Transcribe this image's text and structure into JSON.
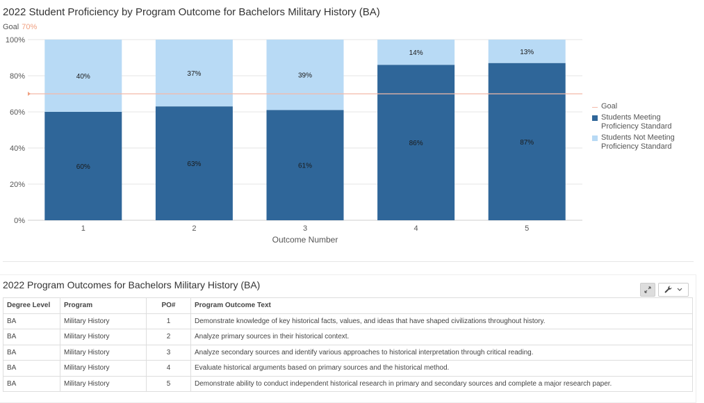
{
  "chart_data": {
    "type": "bar",
    "stacked": true,
    "title": "2022 Student Proficiency by Program Outcome for Bachelors Military History (BA)",
    "xlabel": "Outcome Number",
    "ylabel": "",
    "categories": [
      "1",
      "2",
      "3",
      "4",
      "5"
    ],
    "y_ticks": [
      "0%",
      "20%",
      "40%",
      "60%",
      "80%",
      "100%"
    ],
    "ylim": [
      0,
      100
    ],
    "goal": {
      "label": "Goal",
      "value": 70,
      "value_label": "70%"
    },
    "series": [
      {
        "name": "Students Meeting Proficiency Standard",
        "values": [
          60,
          63,
          61,
          86,
          87
        ],
        "labels": [
          "60%",
          "63%",
          "61%",
          "86%",
          "87%"
        ],
        "color": "#2f6699"
      },
      {
        "name": "Students Not Meeting Proficiency Standard",
        "values": [
          40,
          37,
          39,
          14,
          13
        ],
        "labels": [
          "40%",
          "37%",
          "39%",
          "14%",
          "13%"
        ],
        "color": "#b8daf5"
      }
    ],
    "legend": {
      "position": "right",
      "goal_label": "Goal",
      "goal_color": "#f4b9a8"
    },
    "grid": true
  },
  "table": {
    "title": "2022 Program Outcomes for Bachelors Military History (BA)",
    "headers": [
      "Degree Level",
      "Program",
      "PO#",
      "Program Outcome Text"
    ],
    "rows": [
      [
        "BA",
        "Military History",
        "1",
        "Demonstrate knowledge of key historical facts, values, and ideas that have shaped civilizations throughout history."
      ],
      [
        "BA",
        "Military History",
        "2",
        "Analyze primary sources in their historical context."
      ],
      [
        "BA",
        "Military History",
        "3",
        "Analyze secondary sources and identify various approaches to historical interpretation through critical reading."
      ],
      [
        "BA",
        "Military History",
        "4",
        "Evaluate historical arguments based on primary sources and the historical method."
      ],
      [
        "BA",
        "Military History",
        "5",
        "Demonstrate ability to conduct independent historical research in primary and secondary sources and complete a major research paper."
      ]
    ],
    "toolbar": {
      "expand_icon": "expand-icon",
      "wrench_icon": "wrench-icon",
      "chevron_icon": "chevron-down-icon"
    }
  }
}
